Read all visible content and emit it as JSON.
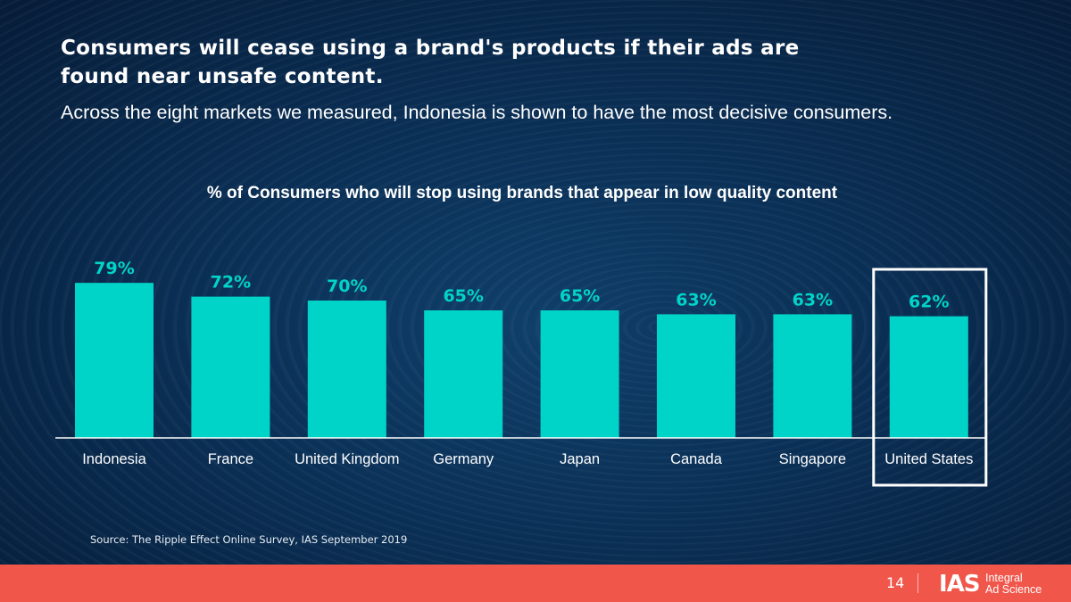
{
  "headline": {
    "line1": "Consumers will cease using a brand's products if their ads are",
    "line2": "found near unsafe content."
  },
  "subhead": "Across the eight markets we measured, Indonesia is shown to have the most decisive consumers.",
  "chart_data": {
    "type": "bar",
    "title": "% of Consumers who will stop using brands that appear in low quality content",
    "categories": [
      "Indonesia",
      "France",
      "United Kingdom",
      "Germany",
      "Japan",
      "Canada",
      "Singapore",
      "United States"
    ],
    "values": [
      79,
      72,
      70,
      65,
      65,
      63,
      63,
      62
    ],
    "value_labels": [
      "79%",
      "72%",
      "70%",
      "65%",
      "65%",
      "63%",
      "63%",
      "62%"
    ],
    "highlighted_category": "United States",
    "xlabel": "",
    "ylabel": "",
    "ylim": [
      0,
      100
    ],
    "grid": false,
    "bar_color": "#00d4c8",
    "label_color": "#00d4c8",
    "highlight_box_color": "#ffffff"
  },
  "source": "Source: The Ripple Effect Online Survey, IAS September 2019",
  "footer": {
    "page_number": "14",
    "logo_mark": "IAS",
    "logo_line1": "Integral",
    "logo_line2": "Ad Science",
    "color": "#f0564a"
  }
}
